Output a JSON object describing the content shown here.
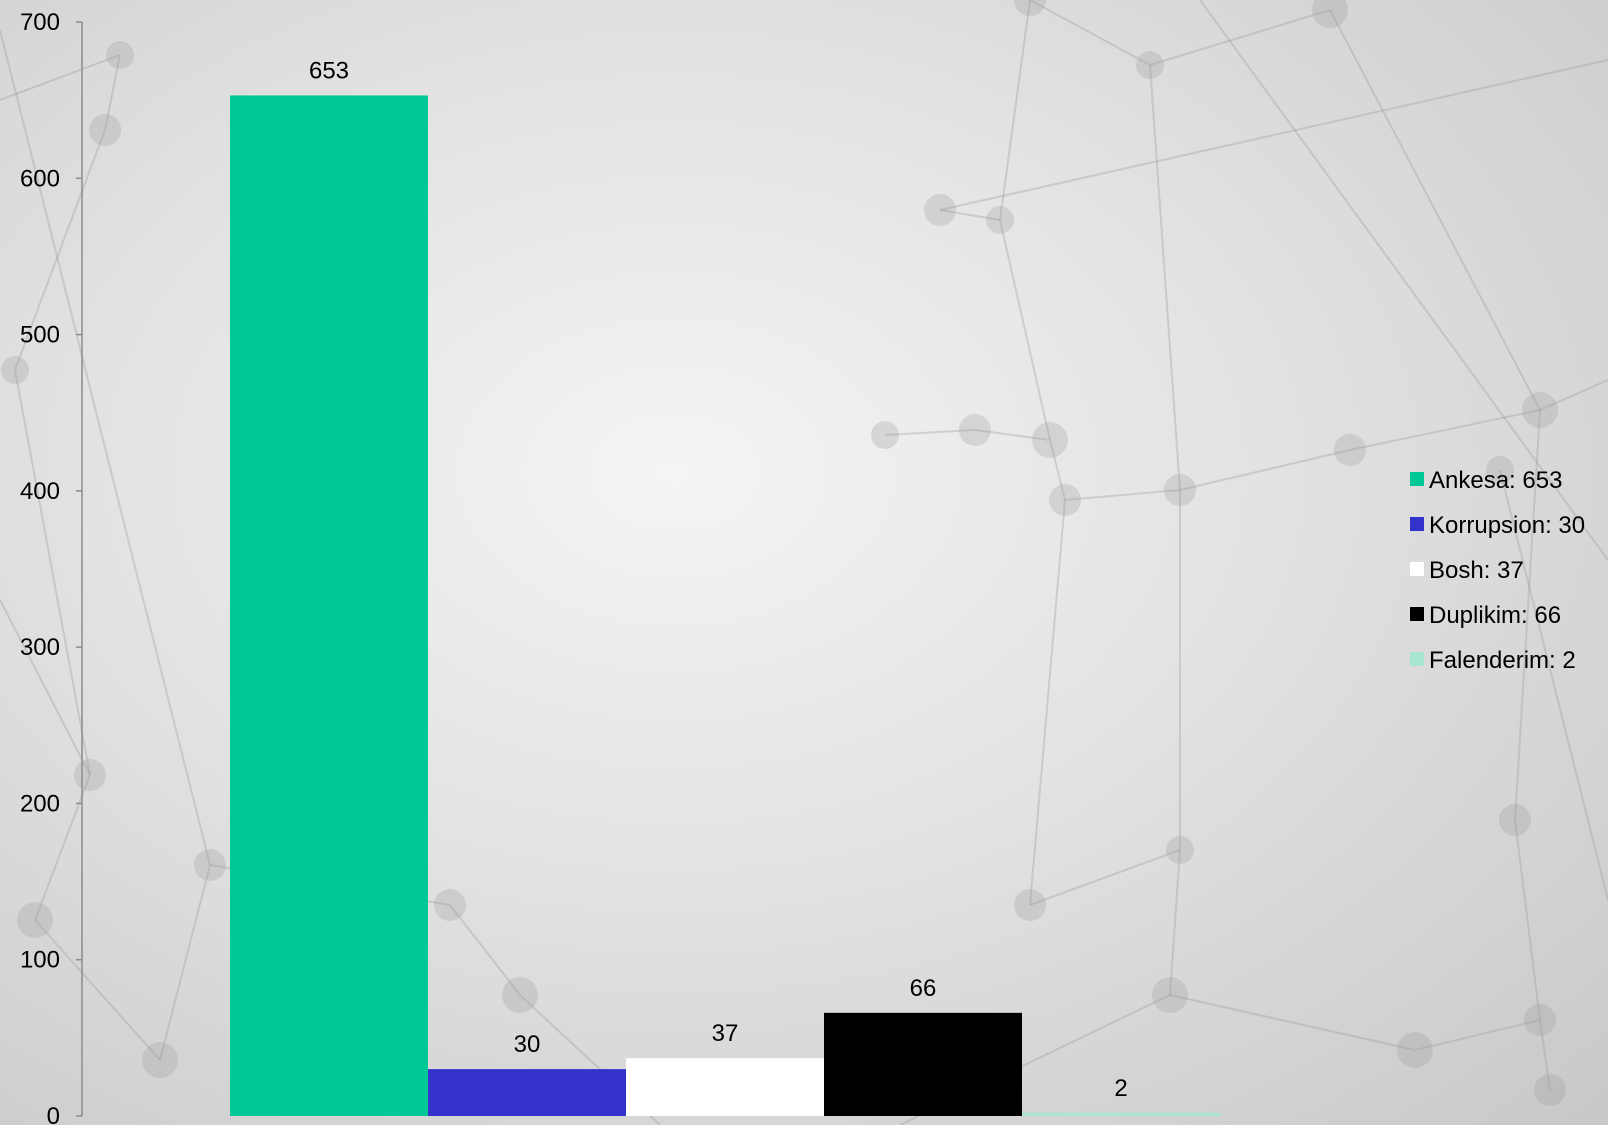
{
  "chart_data": {
    "type": "bar",
    "categories": [
      "Ankesa",
      "Korrupsion",
      "Bosh",
      "Duplikim",
      "Falenderim"
    ],
    "values": [
      653,
      30,
      37,
      66,
      2
    ],
    "data_labels": [
      "653",
      "30",
      "37",
      "66",
      "2"
    ],
    "colors": [
      "#00c897",
      "#3333cc",
      "#ffffff",
      "#000000",
      "#a8e6d2"
    ],
    "legend": [
      {
        "label": "Ankesa: 653",
        "color": "#00c897"
      },
      {
        "label": "Korrupsion: 30",
        "color": "#3333cc"
      },
      {
        "label": "Bosh: 37",
        "color": "#ffffff"
      },
      {
        "label": "Duplikim: 66",
        "color": "#000000"
      },
      {
        "label": "Falenderim: 2",
        "color": "#a8e6d2"
      }
    ],
    "legend_position": "right",
    "y_ticks": [
      "0",
      "100",
      "200",
      "300",
      "400",
      "500",
      "600",
      "700"
    ],
    "ylim": [
      0,
      700
    ],
    "grid": false,
    "title": "",
    "xlabel": "",
    "ylabel": ""
  }
}
